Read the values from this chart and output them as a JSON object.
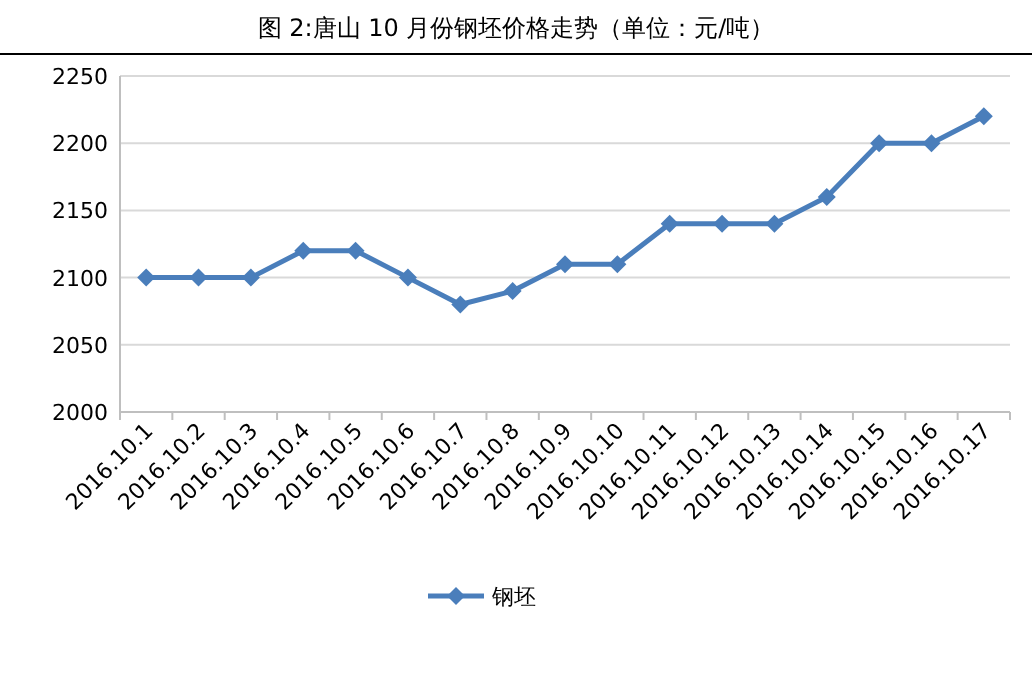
{
  "chart_data": {
    "type": "line",
    "title": "图 2:唐山 10 月份钢坯价格走势（单位：元/吨）",
    "categories": [
      "2016.10.1",
      "2016.10.2",
      "2016.10.3",
      "2016.10.4",
      "2016.10.5",
      "2016.10.6",
      "2016.10.7",
      "2016.10.8",
      "2016.10.9",
      "2016.10.10",
      "2016.10.11",
      "2016.10.12",
      "2016.10.13",
      "2016.10.14",
      "2016.10.15",
      "2016.10.16",
      "2016.10.17"
    ],
    "series": [
      {
        "name": "钢坯",
        "color": "#4a7ebb",
        "values": [
          2100,
          2100,
          2100,
          2120,
          2120,
          2100,
          2080,
          2090,
          2110,
          2110,
          2140,
          2140,
          2140,
          2160,
          2200,
          2200,
          2220
        ]
      }
    ],
    "ylim": [
      2000,
      2250
    ],
    "yticks": [
      2000,
      2050,
      2100,
      2150,
      2200,
      2250
    ],
    "grid": "y",
    "legend": "bottom",
    "marker": "diamond",
    "line_style": "solid"
  }
}
